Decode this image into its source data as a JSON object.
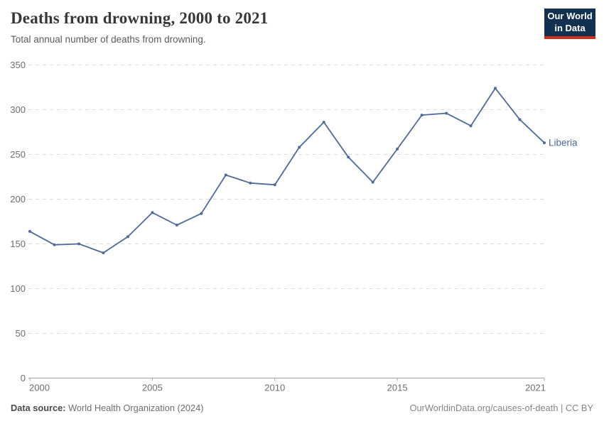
{
  "header": {
    "title": "Deaths from drowning, 2000 to 2021",
    "subtitle": "Total annual number of deaths from drowning.",
    "logo": {
      "line1": "Our World",
      "line2": "in Data"
    }
  },
  "colors": {
    "series_blue": "#4C6A9C",
    "logo_navy": "#12304F",
    "logo_red": "#D12E1E",
    "grid_gray": "#dcdcdc",
    "axis_gray": "#a3a3a3"
  },
  "chart_data": {
    "type": "line",
    "title": "Deaths from drowning, 2000 to 2021",
    "xlabel": "",
    "ylabel": "",
    "xlim": [
      2000,
      2021
    ],
    "ylim": [
      0,
      350
    ],
    "yticks": [
      0,
      50,
      100,
      150,
      200,
      250,
      300,
      350
    ],
    "xticks": [
      2000,
      2005,
      2010,
      2015,
      2021
    ],
    "grid": "horizontal-dashed",
    "legend": "end-of-line-label",
    "categories": [
      2000,
      2001,
      2002,
      2003,
      2004,
      2005,
      2006,
      2007,
      2008,
      2009,
      2010,
      2011,
      2012,
      2013,
      2014,
      2015,
      2016,
      2017,
      2018,
      2019,
      2020,
      2021
    ],
    "series": [
      {
        "name": "Liberia",
        "color": "#4C6A9C",
        "x": [
          2000,
          2001,
          2002,
          2003,
          2004,
          2005,
          2006,
          2007,
          2008,
          2009,
          2010,
          2011,
          2012,
          2013,
          2014,
          2015,
          2016,
          2017,
          2018,
          2019,
          2020,
          2021
        ],
        "values": [
          164,
          149,
          150,
          140,
          158,
          185,
          171,
          184,
          227,
          218,
          216,
          258,
          286,
          247,
          219,
          256,
          294,
          296,
          282,
          324,
          289,
          263
        ]
      }
    ]
  },
  "footer": {
    "source_label": "Data source:",
    "source_value": " World Health Organization (2024)",
    "credit": "OurWorldinData.org/causes-of-death | CC BY"
  }
}
